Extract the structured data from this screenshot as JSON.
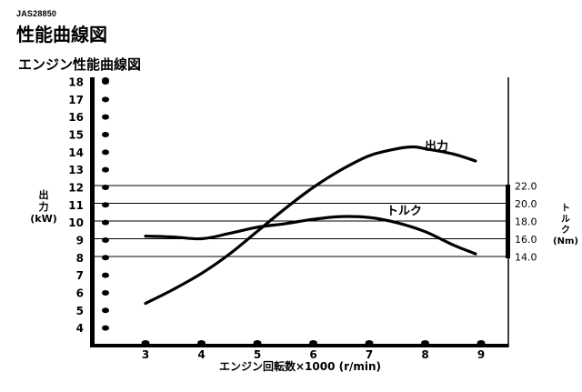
{
  "document_code": "JAS28850",
  "heading": "性能曲線図",
  "chart_data": {
    "type": "line",
    "title": "エンジン性能曲線図",
    "xlabel": "エンジン回転数×1000 (r/min)",
    "x_ticks": [
      3,
      4,
      5,
      6,
      7,
      8,
      9
    ],
    "xlim": [
      2,
      9.3
    ],
    "y_left": {
      "label_lines": [
        "出",
        "力",
        "(kW)"
      ],
      "ticks": [
        4,
        5,
        6,
        7,
        8,
        9,
        10,
        11,
        12,
        13,
        14,
        15,
        16,
        17,
        18
      ],
      "range": [
        3,
        18
      ]
    },
    "y_right": {
      "label_lines": [
        "ト",
        "ル",
        "ク",
        "(Nm)"
      ],
      "ticks": [
        "14.0",
        "16.0",
        "18.0",
        "20.0",
        "22.0"
      ],
      "range": [
        14,
        22
      ]
    },
    "reference_lines_right": [
      14,
      16,
      18,
      20,
      22
    ],
    "series": [
      {
        "name": "出力",
        "axis": "left",
        "x": [
          3.0,
          3.5,
          4.0,
          4.5,
          5.0,
          5.5,
          6.0,
          6.5,
          7.0,
          7.5,
          7.8,
          8.0,
          8.5,
          8.9
        ],
        "y": [
          5.4,
          6.2,
          7.1,
          8.2,
          9.5,
          10.8,
          12.0,
          13.0,
          13.8,
          14.2,
          14.3,
          14.2,
          13.9,
          13.5
        ]
      },
      {
        "name": "トルク",
        "axis": "right",
        "x": [
          3.0,
          3.5,
          4.0,
          4.5,
          5.0,
          5.5,
          6.0,
          6.5,
          7.0,
          7.5,
          8.0,
          8.5,
          8.9
        ],
        "y": [
          16.3,
          16.2,
          16.0,
          16.6,
          17.3,
          17.7,
          18.2,
          18.5,
          18.4,
          17.8,
          16.8,
          15.3,
          14.3
        ]
      }
    ]
  }
}
